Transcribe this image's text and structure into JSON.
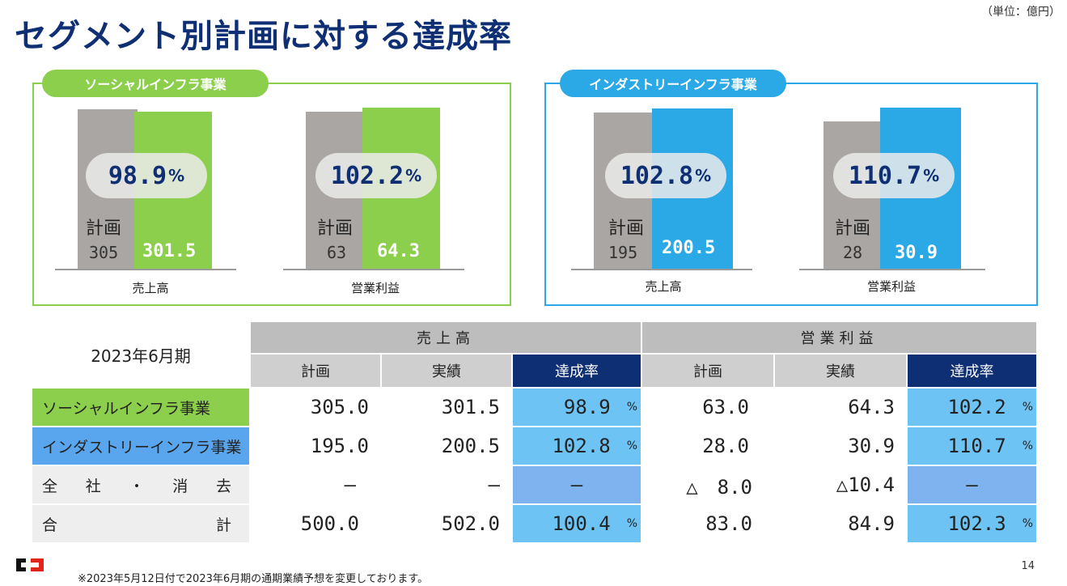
{
  "header": {
    "title": "セグメント別計画に対する達成率",
    "unit": "（単位：億円）"
  },
  "panels": {
    "social": {
      "label": "ソーシャルインフラ事業",
      "sales": {
        "rate": "98.9",
        "pct": "%",
        "plan_label": "計画",
        "plan": "305",
        "actual": "301.5",
        "caption": "売上高"
      },
      "profit": {
        "rate": "102.2",
        "pct": "%",
        "plan_label": "計画",
        "plan": "63",
        "actual": "64.3",
        "caption": "営業利益"
      }
    },
    "industry": {
      "label": "インダストリーインフラ事業",
      "sales": {
        "rate": "102.8",
        "pct": "%",
        "plan_label": "計画",
        "plan": "195",
        "actual": "200.5",
        "caption": "売上高"
      },
      "profit": {
        "rate": "110.7",
        "pct": "%",
        "plan_label": "計画",
        "plan": "28",
        "actual": "30.9",
        "caption": "営業利益"
      }
    }
  },
  "table": {
    "period": "2023年6月期",
    "group_sales": "売上高",
    "group_profit": "営業利益",
    "col_plan": "計画",
    "col_actual": "実績",
    "col_rate": "達成率",
    "pct": "%",
    "rows": [
      {
        "label": "ソーシャルインフラ事業",
        "s_plan": "305.0",
        "s_act": "301.5",
        "s_rate": "98.9",
        "p_plan": "63.0",
        "p_act": "64.3",
        "p_rate": "102.2"
      },
      {
        "label": "インダストリーインフラ事業",
        "s_plan": "195.0",
        "s_act": "200.5",
        "s_rate": "102.8",
        "p_plan": "28.0",
        "p_act": "30.9",
        "p_rate": "110.7"
      },
      {
        "label_a": "全",
        "label_b": "社",
        "label_c": "・",
        "label_d": "消",
        "label_e": "去",
        "s_plan": "―",
        "s_act": "―",
        "s_rate": "―",
        "p_plan": "△　8.0",
        "p_act": "△10.4",
        "p_rate": "―"
      },
      {
        "label_a": "合",
        "label_b": "計",
        "s_plan": "500.0",
        "s_act": "502.0",
        "s_rate": "100.4",
        "p_plan": "83.0",
        "p_act": "84.9",
        "p_rate": "102.3"
      }
    ]
  },
  "footer": {
    "note": "※2023年5月12日付で2023年6月期の通期業績予想を変更しております。",
    "page": "14"
  },
  "colors": {
    "navy": "#0e2f73",
    "green": "#8ccf4c",
    "blue": "#2ba8e6",
    "grey_bar": "#aaa6a4"
  }
}
